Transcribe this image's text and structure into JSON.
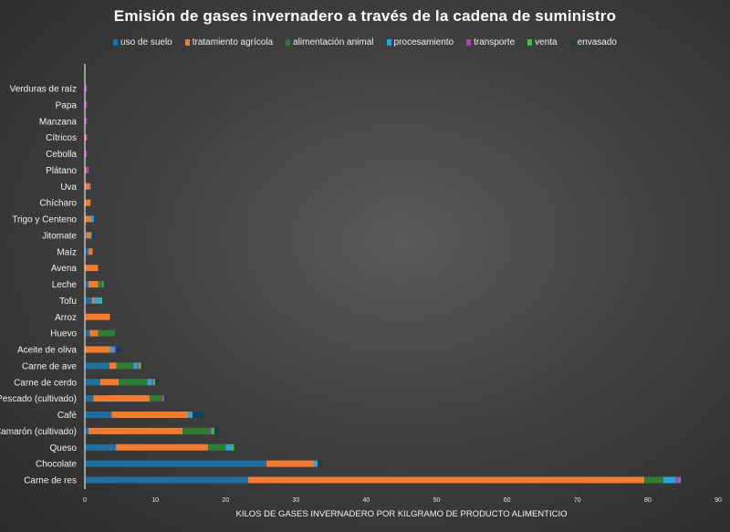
{
  "chart_data": {
    "type": "bar",
    "orientation": "horizontal",
    "stacked": true,
    "title": "Emisión de gases invernadero a través de la cadena de suministro",
    "xlabel": "KILOS DE GASES INVERNADERO POR KILGRAMO DE PRODUCTO ALIMENTICIO",
    "ylabel": "",
    "xlim": [
      0,
      90
    ],
    "xticks": [
      "0",
      "10",
      "20",
      "30",
      "40",
      "50",
      "60",
      "70",
      "80",
      "90"
    ],
    "legend_position": "top",
    "grid": false,
    "categories": [
      "Verduras de raíz",
      "Papa",
      "Manzana",
      "Cítricos",
      "Cebolla",
      "Plátano",
      "Uva",
      "Chícharo",
      "Trigo y Centeno",
      "Jitomate",
      "Maíz",
      "Avena",
      "Leche",
      "Tofu",
      "Arroz",
      "Huevo",
      "Aceite de oliva",
      "Carne de ave",
      "Carne de cerdo",
      "Pescado (cultivado)",
      "Café",
      "Camarón (cultivado)",
      "Queso",
      "Chocolate",
      "Carne de res"
    ],
    "series": [
      {
        "name": "uso de suelo",
        "color": "#1f6fa3",
        "values": [
          0,
          0,
          0,
          0,
          0,
          0,
          0,
          0,
          0,
          0.2,
          0.5,
          0,
          0.5,
          1.0,
          0.1,
          0.7,
          0,
          3.5,
          2.2,
          1.2,
          3.8,
          0.5,
          4.4,
          25.8,
          23.2
        ]
      },
      {
        "name": "tratamiento agrícola",
        "color": "#f37b2f",
        "values": [
          0.1,
          0.1,
          0.1,
          0.2,
          0.1,
          0.2,
          0.7,
          0.8,
          0.9,
          0.7,
          0.6,
          1.9,
          1.4,
          0.4,
          3.5,
          1.2,
          3.6,
          1.0,
          2.6,
          8.0,
          10.9,
          13.4,
          13.1,
          6.8,
          56.3
        ]
      },
      {
        "name": "alimentación animal",
        "color": "#2e7d32",
        "values": [
          0,
          0,
          0,
          0,
          0,
          0,
          0,
          0,
          0,
          0,
          0,
          0,
          0.6,
          0,
          0,
          2.4,
          0,
          2.4,
          4.1,
          1.8,
          0,
          3.9,
          2.5,
          0,
          2.7
        ]
      },
      {
        "name": "procesamiento",
        "color": "#29a3e0",
        "values": [
          0,
          0,
          0,
          0,
          0,
          0,
          0,
          0,
          0.4,
          0.1,
          0,
          0,
          0,
          0.8,
          0,
          0,
          0.6,
          0.5,
          0.6,
          0,
          0.6,
          0,
          0.8,
          0.5,
          1.8
        ]
      },
      {
        "name": "transporte",
        "color": "#b23fb8",
        "values": [
          0.2,
          0.2,
          0.2,
          0.1,
          0.2,
          0.4,
          0.2,
          0,
          0,
          0,
          0,
          0,
          0,
          0,
          0,
          0,
          0.2,
          0.2,
          0.2,
          0.3,
          0,
          0.2,
          0,
          0,
          0.5
        ]
      },
      {
        "name": "venta",
        "color": "#4cb848",
        "values": [
          0,
          0,
          0,
          0,
          0,
          0,
          0,
          0,
          0,
          0,
          0,
          0,
          0.2,
          0.3,
          0,
          0,
          0,
          0.4,
          0.3,
          0,
          0,
          0.4,
          0.4,
          0,
          0.2
        ]
      },
      {
        "name": "envasado",
        "color": "#163d58",
        "values": [
          0,
          0,
          0,
          0,
          0,
          0.1,
          0.1,
          0,
          0.1,
          0.3,
          0,
          0.1,
          0.1,
          0.1,
          0.2,
          0.1,
          0.9,
          0.2,
          0.5,
          0.2,
          1.6,
          0.6,
          0,
          0.5,
          0.3
        ]
      }
    ]
  }
}
